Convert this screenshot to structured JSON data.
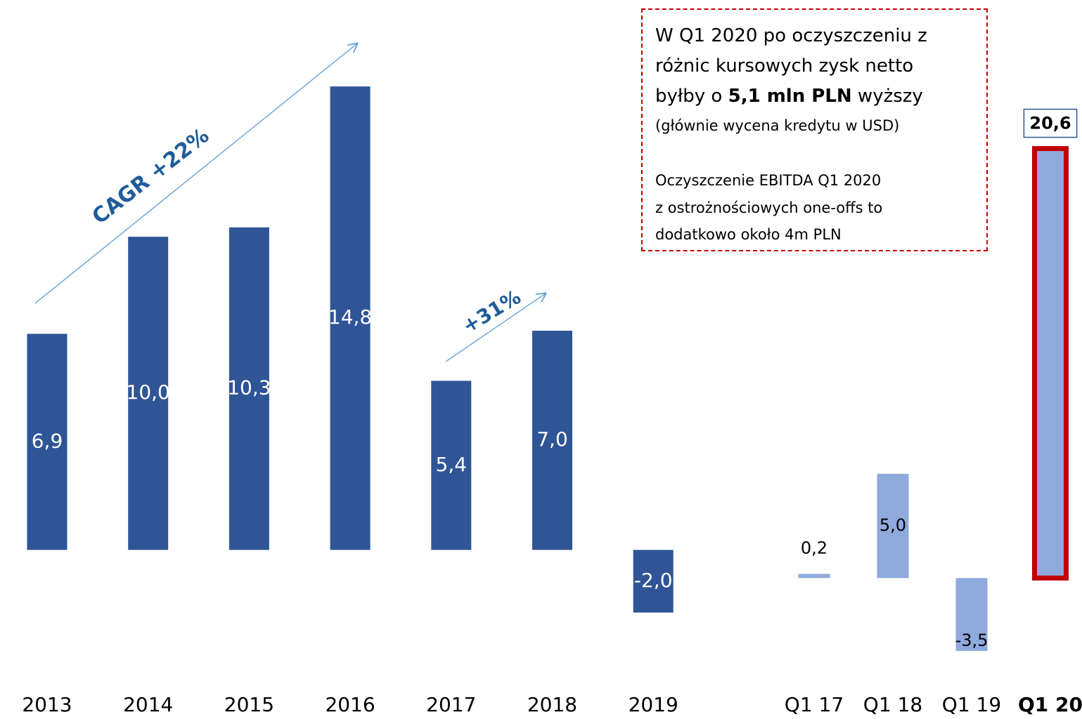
{
  "chart_data": [
    {
      "type": "bar",
      "categories": [
        "2013",
        "2014",
        "2015",
        "2016",
        "2017",
        "2018",
        "2019"
      ],
      "values": [
        6.9,
        10.0,
        10.3,
        14.8,
        5.4,
        7.0,
        -2.0
      ],
      "value_labels": [
        "6,9",
        "10,0",
        "10,3",
        "14,8",
        "5,4",
        "7,0",
        "-2,0"
      ],
      "color": "#2f5597",
      "ylim": [
        -3,
        17
      ],
      "annotations": [
        "CAGR +22%",
        "+31%"
      ]
    },
    {
      "type": "bar",
      "categories": [
        "Q1 17",
        "Q1 18",
        "Q1 19",
        "Q1 20"
      ],
      "values": [
        0.2,
        5.0,
        -3.5,
        20.6
      ],
      "value_labels": [
        "0,2",
        "5,0",
        "-3,5",
        "20,6"
      ],
      "color": "#8faadc",
      "highlight_color": "#c00000",
      "ylim": [
        -4,
        22
      ],
      "note": [
        [
          "W Q1 2020 po oczyszczeniu z"
        ],
        [
          "różnic kursowych zysk netto"
        ],
        [
          "byłby o ",
          "5,1 mln PLN",
          " wyższy"
        ],
        [
          "(głównie wycena kredytu w USD)"
        ],
        [
          "Oczyszczenie EBITDA Q1 2020"
        ],
        [
          "z ostrożnościowych one-offs to"
        ],
        [
          "dodatkowo około 4m PLN"
        ]
      ]
    }
  ]
}
